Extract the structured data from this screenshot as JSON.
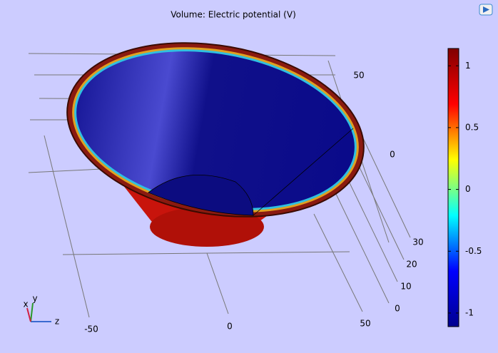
{
  "chart_data": {
    "type": "volume",
    "title": "Volume: Electric potential (V)",
    "colorbar": {
      "lim": [
        -1.11,
        1.14
      ],
      "ticks": [
        -1,
        -0.5,
        0,
        0.5,
        1
      ],
      "colors": [
        "#00008f",
        "#0000ff",
        "#00ffff",
        "#ffff00",
        "#ff0000",
        "#800000"
      ]
    },
    "x_ticks": [
      -50,
      0,
      50
    ],
    "y_ticks": [
      0,
      10,
      20,
      30
    ],
    "z_ticks": [
      0,
      50
    ],
    "triad": [
      "x",
      "y",
      "z"
    ]
  }
}
